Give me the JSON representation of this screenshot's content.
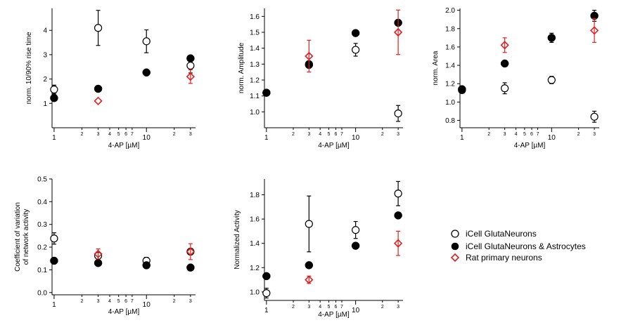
{
  "colors": {
    "icell": "#000000",
    "astro": "#000000",
    "rat": "#e02020"
  },
  "legend": {
    "entries": [
      {
        "key": "icell",
        "label": "iCell GlutaNeurons",
        "marker": "open-circle"
      },
      {
        "key": "astro",
        "label": "iCell GlutaNeurons  & Astrocytes",
        "marker": "filled-circle"
      },
      {
        "key": "rat",
        "label": "Rat primary neurons",
        "marker": "open-diamond"
      }
    ]
  },
  "chart_data": [
    {
      "type": "scatter",
      "xlabel": "4-AP [µM]",
      "ylabel": "norm. 10/90% rise time",
      "xscale": "log",
      "xlim": [
        0.95,
        34
      ],
      "xticks_major": [
        "1",
        "10"
      ],
      "xticks_minor": [
        "2",
        "3",
        "4",
        "5",
        "6",
        "7",
        "2",
        "3"
      ],
      "ylim": [
        0.0,
        4.9
      ],
      "yticks": [
        "1",
        "2",
        "3",
        "4"
      ],
      "series": [
        {
          "key": "icell",
          "points": [
            [
              1,
              1.57,
              0.18
            ],
            [
              3,
              4.1,
              0.72
            ],
            [
              10,
              3.55,
              0.47
            ],
            [
              30,
              2.55,
              0.3
            ]
          ]
        },
        {
          "key": "astro",
          "points": [
            [
              1,
              1.22,
              0
            ],
            [
              3,
              1.6,
              0
            ],
            [
              10,
              2.27,
              0
            ],
            [
              30,
              2.85,
              0
            ]
          ]
        },
        {
          "key": "rat",
          "points": [
            [
              3,
              1.1,
              0
            ],
            [
              30,
              2.1,
              0.28
            ]
          ]
        }
      ]
    },
    {
      "type": "scatter",
      "xlabel": "4-AP [µM]",
      "ylabel": "norm. Amplitude",
      "xscale": "log",
      "xlim": [
        0.95,
        34
      ],
      "xticks_major": [
        "1",
        "10"
      ],
      "xticks_minor": [
        "2",
        "3",
        "4",
        "5",
        "6",
        "7",
        "2",
        "3"
      ],
      "ylim": [
        0.9,
        1.65
      ],
      "yticks": [
        "1.0",
        "1.1",
        "1.2",
        "1.3",
        "1.4",
        "1.5",
        "1.6"
      ],
      "series": [
        {
          "key": "icell",
          "points": [
            [
              1,
              1.12,
              0
            ],
            [
              3,
              1.3,
              0
            ],
            [
              10,
              1.39,
              0.04
            ],
            [
              30,
              0.99,
              0.05
            ]
          ]
        },
        {
          "key": "astro",
          "points": [
            [
              1,
              1.12,
              0
            ],
            [
              3,
              1.295,
              0
            ],
            [
              10,
              1.495,
              0
            ],
            [
              30,
              1.56,
              0
            ]
          ]
        },
        {
          "key": "rat",
          "points": [
            [
              3,
              1.35,
              0.1
            ],
            [
              30,
              1.5,
              0.14
            ]
          ]
        }
      ]
    },
    {
      "type": "scatter",
      "xlabel": "4-AP [µM]",
      "ylabel": "norm. Area",
      "xscale": "log",
      "xlim": [
        0.95,
        34
      ],
      "xticks_major": [
        "1",
        "10"
      ],
      "xticks_minor": [
        "2",
        "3",
        "4",
        "5",
        "6",
        "7",
        "2",
        "3"
      ],
      "ylim": [
        0.72,
        2.02
      ],
      "yticks": [
        "0.8",
        "1.0",
        "1.2",
        "1.4",
        "1.6",
        "1.8",
        "2.0"
      ],
      "series": [
        {
          "key": "icell",
          "points": [
            [
              1,
              1.13,
              0
            ],
            [
              3,
              1.15,
              0.06
            ],
            [
              10,
              1.24,
              0.04
            ],
            [
              30,
              0.84,
              0.06
            ]
          ]
        },
        {
          "key": "astro",
          "points": [
            [
              1,
              1.14,
              0
            ],
            [
              3,
              1.42,
              0
            ],
            [
              10,
              1.7,
              0.05
            ],
            [
              30,
              1.94,
              0.06
            ]
          ]
        },
        {
          "key": "rat",
          "points": [
            [
              3,
              1.62,
              0.08
            ],
            [
              30,
              1.78,
              0.13
            ]
          ]
        }
      ]
    },
    {
      "type": "scatter",
      "xlabel": "4-AP [µM]",
      "ylabel": "Coefficient of variation\nof network activity",
      "xscale": "log",
      "xlim": [
        0.95,
        34
      ],
      "xticks_major": [
        "1",
        "10"
      ],
      "xticks_minor": [
        "2",
        "3",
        "4",
        "5",
        "6",
        "7",
        "2",
        "3"
      ],
      "ylim": [
        -0.01,
        0.5
      ],
      "yticks": [
        "0.0",
        "0.1",
        "0.2",
        "0.3",
        "0.4",
        "0.5"
      ],
      "series": [
        {
          "key": "icell",
          "points": [
            [
              1,
              0.238,
              0.025
            ],
            [
              3,
              0.162,
              0
            ],
            [
              10,
              0.14,
              0.015
            ],
            [
              30,
              0.18,
              0
            ]
          ]
        },
        {
          "key": "astro",
          "points": [
            [
              1,
              0.14,
              0
            ],
            [
              3,
              0.13,
              0
            ],
            [
              10,
              0.12,
              0
            ],
            [
              30,
              0.11,
              0
            ]
          ]
        },
        {
          "key": "rat",
          "points": [
            [
              3,
              0.17,
              0.022
            ],
            [
              30,
              0.18,
              0.035
            ]
          ]
        }
      ]
    },
    {
      "type": "scatter",
      "xlabel": "4-AP [µM]",
      "ylabel": "Normalized Activity",
      "xscale": "log",
      "xlim": [
        0.95,
        34
      ],
      "xticks_major": [
        "1",
        "10"
      ],
      "xticks_minor": [
        "2",
        "3",
        "4",
        "5",
        "6",
        "7",
        "2",
        "3"
      ],
      "ylim": [
        0.93,
        1.93
      ],
      "yticks": [
        "1.0",
        "1.2",
        "1.4",
        "1.6",
        "1.8"
      ],
      "series": [
        {
          "key": "icell",
          "points": [
            [
              1,
              0.99,
              0.04
            ],
            [
              3,
              1.56,
              0.23
            ],
            [
              10,
              1.51,
              0.07
            ],
            [
              30,
              1.81,
              0.1
            ]
          ]
        },
        {
          "key": "astro",
          "points": [
            [
              1,
              1.13,
              0
            ],
            [
              3,
              1.22,
              0
            ],
            [
              10,
              1.38,
              0
            ],
            [
              30,
              1.63,
              0
            ]
          ]
        },
        {
          "key": "rat",
          "points": [
            [
              3,
              1.1,
              0.03
            ],
            [
              30,
              1.4,
              0.1
            ]
          ]
        }
      ]
    }
  ]
}
